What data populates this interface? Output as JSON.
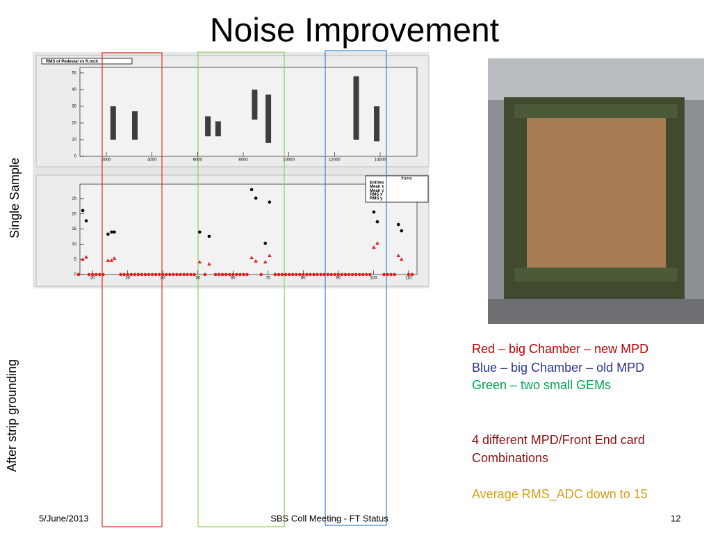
{
  "slide": {
    "title": "Noise Improvement",
    "side_labels": [
      "Single Sample",
      "After strip grounding"
    ],
    "notes": [
      {
        "text": "Red – big Chamber – new MPD",
        "color": "#c00000"
      },
      {
        "text": "Blue – big Chamber – old MPD",
        "color": "#2e3192"
      },
      {
        "text": "Green – two small GEMs",
        "color": "#00a651"
      },
      {
        "text": "4 different MPD/Front End card",
        "color": "#8b1010"
      },
      {
        "text": "Combinations",
        "color": "#8b1010"
      },
      {
        "text": "Average RMS_ADC  down to 15",
        "color": "#d4a017"
      }
    ],
    "footer": {
      "date": "5/June/2013",
      "center": "SBS Coll Meeting - FT Status",
      "page": "12"
    }
  },
  "chart_data": [
    {
      "type": "range",
      "title": "RMS of Pedestal vs ft.mch",
      "color": "#000000",
      "x": [
        2300,
        3250,
        6450,
        6900,
        8500,
        9100,
        12950,
        13850
      ],
      "low": [
        10,
        10,
        12,
        12,
        22,
        8,
        10,
        9
      ],
      "high": [
        30,
        27,
        24,
        21,
        40,
        37,
        48,
        30
      ],
      "xlim": [
        843,
        15615
      ],
      "ylim": [
        0,
        53.3
      ],
      "xticks": [
        2000,
        4000,
        6000,
        8000,
        10000,
        12000,
        14000
      ],
      "yticks": [
        0,
        10,
        20,
        30,
        40,
        50
      ]
    },
    {
      "type": "scatter",
      "stats_title": "frame",
      "stats_labels": [
        "Entries",
        "Mean x",
        "Mean y",
        "RMS x",
        "RMS y"
      ],
      "xlim": [
        16.4,
        112.4
      ],
      "ylim": [
        0,
        29.8
      ],
      "xticks": [
        20,
        30,
        40,
        50,
        60,
        70,
        80,
        90,
        100,
        110
      ],
      "yticks": [
        0,
        5,
        10,
        15,
        20,
        25
      ],
      "series": [
        {
          "color": "#000000",
          "marker": "circle",
          "x": [
            17.2,
            18.2,
            24.4,
            25.4,
            26.2,
            50.5,
            53.2,
            65.3,
            66.5,
            69.2,
            70.4,
            100.1,
            101.1,
            107.1,
            108.0
          ],
          "values": [
            21.1,
            17.7,
            13.3,
            14.0,
            14.0,
            14.0,
            12.6,
            28,
            25.2,
            10.3,
            23.9,
            20.6,
            17.4,
            16.5,
            14.4
          ]
        },
        {
          "color": "#e02020",
          "marker": "triangle",
          "x": [
            17.2,
            18.2,
            24.4,
            25.4,
            26.2,
            50.5,
            53.2,
            65.3,
            66.5,
            69.2,
            70.4,
            100.1,
            101.1,
            107.1,
            108.0
          ],
          "values": [
            5.0,
            5.7,
            4.6,
            4.6,
            5.3,
            4.1,
            3.4,
            5.5,
            4.4,
            4.1,
            6.2,
            8.9,
            10.3,
            6.2,
            5.0
          ]
        },
        {
          "color": "#e02020",
          "marker": "circle",
          "x": [
            16,
            19,
            20,
            21,
            22,
            23,
            28,
            29,
            30,
            31,
            32,
            33,
            34,
            35,
            36,
            37,
            38,
            39,
            40,
            41,
            42,
            43,
            44,
            45,
            46,
            47,
            48,
            49,
            52,
            55,
            56,
            57,
            58,
            59,
            60,
            61,
            62,
            63,
            64,
            68,
            72,
            73,
            74,
            75,
            76,
            77,
            78,
            79,
            80,
            81,
            82,
            83,
            84,
            85,
            86,
            87,
            88,
            89,
            90,
            91,
            92,
            93,
            94,
            95,
            96,
            97,
            98,
            99,
            103,
            104,
            105,
            106,
            110,
            111
          ],
          "values": [
            0,
            0,
            0,
            0,
            0,
            0,
            0,
            0,
            0,
            0,
            0,
            0,
            0,
            0,
            0,
            0,
            0,
            0,
            0,
            0,
            0,
            0,
            0,
            0,
            0,
            0,
            0,
            0,
            0,
            0,
            0,
            0,
            0,
            0,
            0,
            0,
            0,
            0,
            0,
            0,
            0,
            0,
            0,
            0,
            0,
            0,
            0,
            0,
            0,
            0,
            0,
            0,
            0,
            0,
            0,
            0,
            0,
            0,
            0,
            0,
            0,
            0,
            0,
            0,
            0,
            0,
            0,
            0,
            0,
            0,
            0,
            0,
            0,
            0
          ]
        }
      ]
    }
  ]
}
